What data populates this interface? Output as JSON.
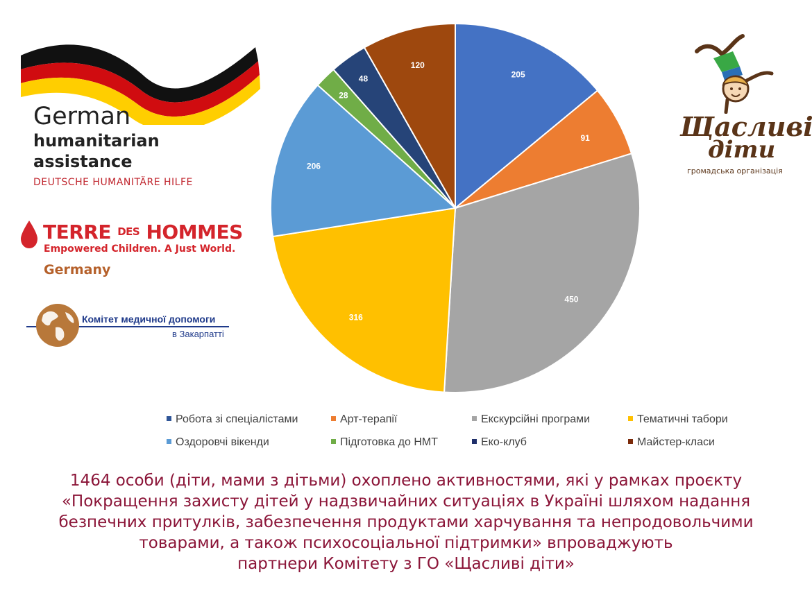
{
  "logos": {
    "gha": {
      "line1": "German",
      "line2": "humanitarian",
      "line3": "assistance",
      "subtitle": "DEUTSCHE HUMANITÄRE HILFE"
    },
    "tdh": {
      "name_big1": "TERRE ",
      "name_small": "DES",
      "name_big2": " HOMMES",
      "tagline": "Empowered Children. A Just World.",
      "country": "Germany"
    },
    "km": {
      "line1": "Комітет медичної допомоги",
      "line2": "в Закарпатті"
    },
    "sd": {
      "line1": "Щасливі",
      "line2": "діти",
      "subtitle": "громадська організація"
    }
  },
  "chart_data": {
    "type": "pie",
    "categories": [
      "Робота зі спеціалістами",
      "Арт-терапії",
      "Екскурсійні програми",
      "Тематичні табори",
      "Оздоровчі вікенди",
      "Підготовка до НМТ",
      "Еко-клуб",
      "Майстер-класи"
    ],
    "values": [
      205,
      91,
      450,
      316,
      206,
      28,
      48,
      120
    ],
    "colors": [
      "#4472c4",
      "#ed7d31",
      "#a5a5a5",
      "#ffc000",
      "#5b9bd5",
      "#70ad47",
      "#264478",
      "#9e480e"
    ],
    "legend_colors": [
      "#2f5597",
      "#ed7d31",
      "#a5a5a5",
      "#ffc000",
      "#5b9bd5",
      "#70ad47",
      "#1f2f6a",
      "#7b2a0a"
    ],
    "legend": "bottom",
    "data_labels": true
  },
  "caption": {
    "line1": "1464 особи (діти, мами з дітьми) охоплено активностями, які у рамках проєкту",
    "line2": "«Покращення захисту дітей у надзвичайних ситуаціях в Україні шляхом надання",
    "line3": "безпечних притулків, забезпечення продуктами харчування та непродовольчими",
    "line4": "товарами, а також психосоціальної підтримки» впроваджують",
    "line5": "партнери Комітету з ГО «Щасливі діти»"
  }
}
